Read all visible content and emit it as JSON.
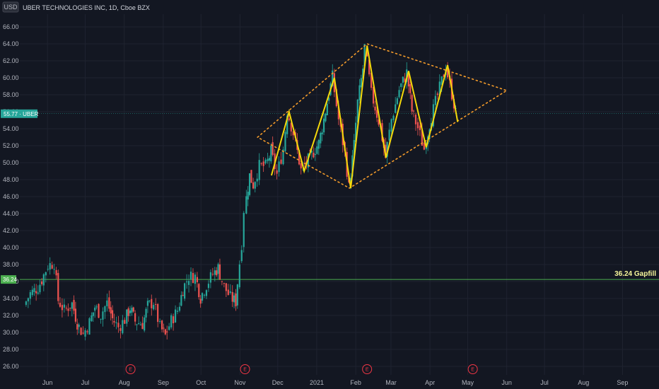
{
  "header": {
    "title": "UBER TECHNOLOGIES INC, 1D, Cboe BZX",
    "currency": "USD"
  },
  "price_badge": {
    "value": "55.77",
    "symbol": "UBER",
    "text": "55.77 · UBER"
  },
  "gap_badge": {
    "value": "36.24"
  },
  "gap_label": "36.24 Gapfill",
  "colors": {
    "background": "#131722",
    "grid": "#1f2330",
    "up": "#26a69a",
    "down": "#ef5350",
    "zigzag": "#f5d90a",
    "diamond": "#f59c2a",
    "gapline": "#4caf50",
    "priceline": "#26a69a",
    "earnings": "#f23645"
  },
  "chart_data": {
    "type": "candlestick",
    "title": "UBER TECHNOLOGIES INC, 1D, Cboe BZX",
    "y_ticks": [
      "26.00",
      "28.00",
      "30.00",
      "32.00",
      "34.00",
      "36.00",
      "38.00",
      "40.00",
      "42.00",
      "44.00",
      "46.00",
      "48.00",
      "50.00",
      "52.00",
      "54.00",
      "56.00",
      "58.00",
      "60.00",
      "62.00",
      "64.00",
      "66.00"
    ],
    "ylim": [
      25.0,
      67.5
    ],
    "x_ticks": [
      "Jun",
      "Jul",
      "Aug",
      "Sep",
      "Oct",
      "Nov",
      "Dec",
      "2021",
      "Feb",
      "Mar",
      "Apr",
      "May",
      "Jun",
      "Jul",
      "Aug",
      "Sep"
    ],
    "x_tick_dates": [
      "2020-06-01",
      "2020-07-01",
      "2020-08-01",
      "2020-09-01",
      "2020-10-01",
      "2020-11-01",
      "2020-12-01",
      "2021-01-01",
      "2021-02-01",
      "2021-03-01",
      "2021-04-01",
      "2021-05-01",
      "2021-06-01",
      "2021-07-01",
      "2021-08-01",
      "2021-09-01"
    ],
    "xlim": [
      "2020-05-10",
      "2021-09-30"
    ],
    "closes": [
      [
        "2020-05-15",
        33.2
      ],
      [
        "2020-05-20",
        34.6
      ],
      [
        "2020-05-26",
        35.3
      ],
      [
        "2020-05-29",
        36.2
      ],
      [
        "2020-06-03",
        37.9
      ],
      [
        "2020-06-08",
        38.2
      ],
      [
        "2020-06-11",
        33.8
      ],
      [
        "2020-06-16",
        32.6
      ],
      [
        "2020-06-22",
        33.4
      ],
      [
        "2020-06-26",
        31.1
      ],
      [
        "2020-07-01",
        29.8
      ],
      [
        "2020-07-06",
        31.2
      ],
      [
        "2020-07-10",
        33.0
      ],
      [
        "2020-07-15",
        32.1
      ],
      [
        "2020-07-20",
        33.5
      ],
      [
        "2020-07-24",
        31.6
      ],
      [
        "2020-07-29",
        30.6
      ],
      [
        "2020-08-03",
        31.5
      ],
      [
        "2020-08-07",
        32.9
      ],
      [
        "2020-08-11",
        31.3
      ],
      [
        "2020-08-17",
        31.0
      ],
      [
        "2020-08-21",
        33.1
      ],
      [
        "2020-08-26",
        33.6
      ],
      [
        "2020-08-31",
        30.6
      ],
      [
        "2020-09-04",
        29.6
      ],
      [
        "2020-09-09",
        31.4
      ],
      [
        "2020-09-14",
        32.6
      ],
      [
        "2020-09-18",
        35.1
      ],
      [
        "2020-09-23",
        36.6
      ],
      [
        "2020-09-28",
        36.6
      ],
      [
        "2020-10-02",
        34.1
      ],
      [
        "2020-10-07",
        35.6
      ],
      [
        "2020-10-12",
        36.9
      ],
      [
        "2020-10-16",
        37.6
      ],
      [
        "2020-10-21",
        35.4
      ],
      [
        "2020-10-26",
        34.1
      ],
      [
        "2020-10-30",
        33.6
      ],
      [
        "2020-11-04",
        40.5
      ],
      [
        "2020-11-06",
        44.5
      ],
      [
        "2020-11-10",
        48.5
      ],
      [
        "2020-11-13",
        47.4
      ],
      [
        "2020-11-18",
        49.6
      ],
      [
        "2020-11-23",
        49.6
      ],
      [
        "2020-11-27",
        51.3
      ],
      [
        "2020-12-02",
        48.6
      ],
      [
        "2020-12-07",
        51.6
      ],
      [
        "2020-12-10",
        56.1
      ],
      [
        "2020-12-15",
        53.5
      ],
      [
        "2020-12-21",
        49.1
      ],
      [
        "2020-12-28",
        50.6
      ],
      [
        "2021-01-04",
        52.3
      ],
      [
        "2021-01-08",
        55.1
      ],
      [
        "2021-01-12",
        58.1
      ],
      [
        "2021-01-15",
        60.1
      ],
      [
        "2021-01-20",
        55.1
      ],
      [
        "2021-01-25",
        51.1
      ],
      [
        "2021-01-28",
        47.1
      ],
      [
        "2021-02-01",
        52.1
      ],
      [
        "2021-02-04",
        57.1
      ],
      [
        "2021-02-08",
        61.1
      ],
      [
        "2021-02-10",
        63.6
      ],
      [
        "2021-02-15",
        58.1
      ],
      [
        "2021-02-22",
        54.1
      ],
      [
        "2021-02-26",
        50.6
      ],
      [
        "2021-03-03",
        55.1
      ],
      [
        "2021-03-09",
        58.6
      ],
      [
        "2021-03-15",
        60.6
      ],
      [
        "2021-03-19",
        56.1
      ],
      [
        "2021-03-24",
        54.1
      ],
      [
        "2021-03-29",
        51.6
      ],
      [
        "2021-04-02",
        54.6
      ],
      [
        "2021-04-07",
        57.1
      ],
      [
        "2021-04-12",
        59.6
      ],
      [
        "2021-04-15",
        61.4
      ],
      [
        "2021-04-20",
        58.1
      ],
      [
        "2021-04-23",
        55.8
      ]
    ],
    "zigzag": [
      [
        "2020-11-26",
        48.5
      ],
      [
        "2020-12-10",
        56.0
      ],
      [
        "2020-12-22",
        49.0
      ],
      [
        "2021-01-15",
        60.0
      ],
      [
        "2021-01-28",
        47.0
      ],
      [
        "2021-02-10",
        63.8
      ],
      [
        "2021-02-25",
        50.6
      ],
      [
        "2021-03-15",
        60.8
      ],
      [
        "2021-03-29",
        51.8
      ],
      [
        "2021-04-15",
        61.5
      ],
      [
        "2021-04-23",
        54.8
      ]
    ],
    "diamond": [
      [
        "2020-11-15",
        53.0
      ],
      [
        "2021-02-10",
        64.0
      ],
      [
        "2021-06-01",
        58.5
      ],
      [
        "2021-01-27",
        47.0
      ]
    ],
    "horizontal_lines": [
      {
        "price": 36.24,
        "label": "36.24 Gapfill"
      },
      {
        "price": 55.77,
        "label": "55.77 · UBER"
      }
    ],
    "earnings_markers": [
      {
        "date": "2020-08-06",
        "label": "E"
      },
      {
        "date": "2020-11-05",
        "label": "E"
      },
      {
        "date": "2021-02-10",
        "label": "E"
      },
      {
        "date": "2021-05-05",
        "label": "E"
      }
    ]
  }
}
